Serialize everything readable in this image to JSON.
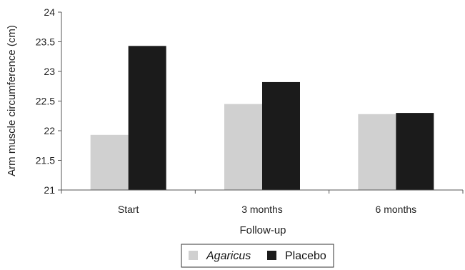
{
  "chart_data": {
    "type": "bar",
    "title": "",
    "xlabel": "Follow-up",
    "ylabel": "Arm muscle circumference (cm)",
    "categories": [
      "Start",
      "3 months",
      "6 months"
    ],
    "series": [
      {
        "name": "Agaricus",
        "values": [
          21.93,
          22.45,
          22.28
        ],
        "color": "#d0d0d0"
      },
      {
        "name": "Placebo",
        "values": [
          23.43,
          22.82,
          22.3
        ],
        "color": "#1b1b1b"
      }
    ],
    "ylim": [
      21,
      24
    ],
    "yticks": [
      "21",
      "21.5",
      "22",
      "22.5",
      "23",
      "23.5",
      "24"
    ],
    "grid": false,
    "legend_position": "bottom"
  }
}
